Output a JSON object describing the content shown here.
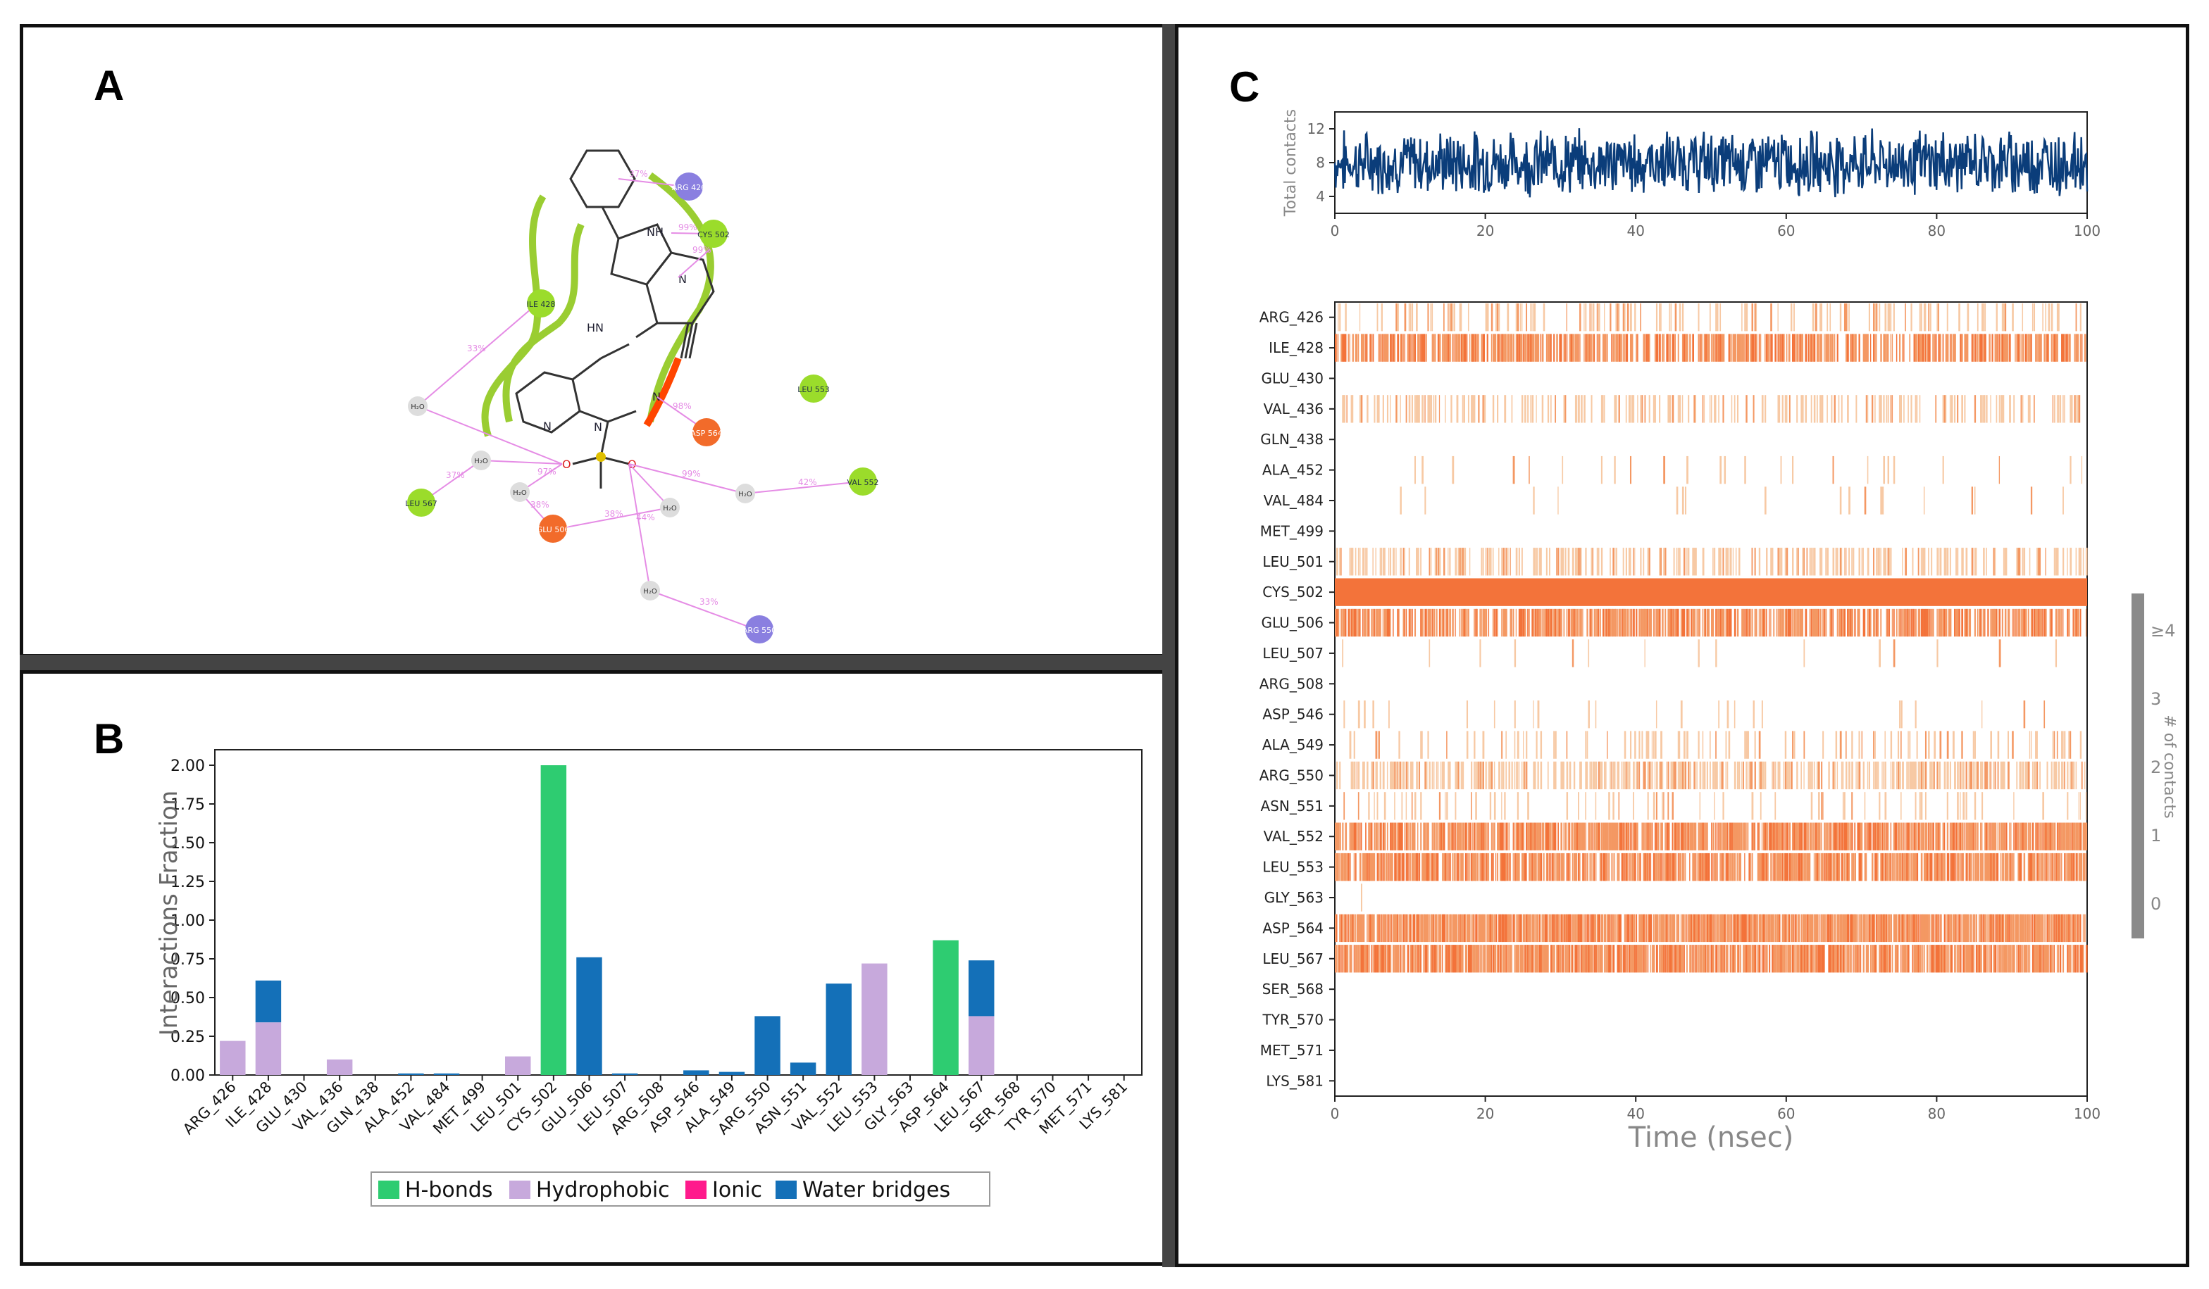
{
  "colors": {
    "hbond": "#2ecc71",
    "hydrophobic": "#c7a9dc",
    "ionic": "#ff1a8c",
    "water": "#1470b8",
    "contacts_line": "#0b3d7a",
    "heat_dark": "#f3733a",
    "heat_mid": "#f49863",
    "heat_light": "#f7c9a4",
    "colorbar": "#8a8a8a"
  },
  "panels": {
    "a": "A",
    "b": "B",
    "c": "C"
  },
  "diagram": {
    "residues": [
      {
        "id": "arg426",
        "label": "ARG 426",
        "kind": "positive"
      },
      {
        "id": "cys502",
        "label": "CYS 502",
        "kind": "hydrophobic"
      },
      {
        "id": "ile428",
        "label": "ILE 428",
        "kind": "hydrophobic"
      },
      {
        "id": "leu553",
        "label": "LEU 553",
        "kind": "hydrophobic"
      },
      {
        "id": "asp564",
        "label": "ASP 564",
        "kind": "negative"
      },
      {
        "id": "val552",
        "label": "VAL 552",
        "kind": "hydrophobic"
      },
      {
        "id": "leu567",
        "label": "LEU 567",
        "kind": "hydrophobic"
      },
      {
        "id": "glu506",
        "label": "GLU 506",
        "kind": "negative"
      },
      {
        "id": "arg550",
        "label": "ARG 550",
        "kind": "positive"
      }
    ],
    "atoms": {
      "nh": "NH",
      "n_ring": "N",
      "hn": "HN",
      "n_nitrile": "N",
      "n_pyr": "N",
      "n_me": "N",
      "o1": "O",
      "o2": "O",
      "s": "S"
    },
    "water_label": "H₂O",
    "pct_labels": [
      "37%",
      "99%",
      "99%",
      "33%",
      "98%",
      "37%",
      "97%",
      "38%",
      "38%",
      "99%",
      "42%",
      "44%",
      "33%"
    ]
  },
  "chart_data": [
    {
      "type": "bar",
      "title": "",
      "ylabel": "Interactions Fraction",
      "xlabel": "",
      "ylim": [
        0,
        2.1
      ],
      "yticks": [
        "0.00",
        "0.25",
        "0.50",
        "0.75",
        "1.00",
        "1.25",
        "1.50",
        "1.75",
        "2.00"
      ],
      "categories": [
        "ARG_426",
        "ILE_428",
        "GLU_430",
        "VAL_436",
        "GLN_438",
        "ALA_452",
        "VAL_484",
        "MET_499",
        "LEU_501",
        "CYS_502",
        "GLU_506",
        "LEU_507",
        "ARG_508",
        "ASP_546",
        "ALA_549",
        "ARG_550",
        "ASN_551",
        "VAL_552",
        "LEU_553",
        "GLY_563",
        "ASP_564",
        "LEU_567",
        "SER_568",
        "TYR_570",
        "MET_571",
        "LYS_581"
      ],
      "series": [
        {
          "name": "H-bonds",
          "values": [
            0,
            0,
            0,
            0,
            0,
            0,
            0,
            0,
            0,
            2.0,
            0,
            0,
            0,
            0,
            0,
            0,
            0,
            0,
            0,
            0,
            0.87,
            0,
            0,
            0,
            0,
            0
          ]
        },
        {
          "name": "Hydrophobic",
          "values": [
            0.22,
            0.34,
            0,
            0.1,
            0,
            0,
            0,
            0,
            0.12,
            0,
            0,
            0,
            0,
            0,
            0,
            0,
            0,
            0,
            0.72,
            0,
            0,
            0.38,
            0,
            0,
            0,
            0
          ]
        },
        {
          "name": "Ionic",
          "values": [
            0,
            0,
            0,
            0,
            0,
            0,
            0,
            0,
            0,
            0,
            0,
            0,
            0,
            0,
            0,
            0,
            0,
            0,
            0,
            0,
            0,
            0,
            0,
            0,
            0,
            0
          ]
        },
        {
          "name": "Water bridges",
          "values": [
            0,
            0.27,
            0,
            0,
            0,
            0.01,
            0.01,
            0,
            0,
            0,
            0.76,
            0.01,
            0,
            0.03,
            0.02,
            0.38,
            0.08,
            0.59,
            0,
            0,
            0,
            0.36,
            0,
            0,
            0,
            0
          ]
        }
      ],
      "legend": [
        "H-bonds",
        "Hydrophobic",
        "Ionic",
        "Water bridges"
      ],
      "legend_position": "bottom"
    },
    {
      "type": "line",
      "ylabel": "Total contacts",
      "xlim": [
        0,
        100
      ],
      "ylim": [
        2,
        14
      ],
      "xticks": [
        "0",
        "20",
        "40",
        "60",
        "80",
        "100"
      ],
      "yticks": [
        "4",
        "8",
        "12"
      ],
      "mean": 8,
      "spread": 3
    },
    {
      "type": "heatmap",
      "xlabel": "Time (nsec)",
      "xlim": [
        0,
        100
      ],
      "xticks": [
        "0",
        "20",
        "40",
        "60",
        "80",
        "100"
      ],
      "rows": [
        "ARG_426",
        "ILE_428",
        "GLU_430",
        "VAL_436",
        "GLN_438",
        "ALA_452",
        "VAL_484",
        "MET_499",
        "LEU_501",
        "CYS_502",
        "GLU_506",
        "LEU_507",
        "ARG_508",
        "ASP_546",
        "ALA_549",
        "ARG_550",
        "ASN_551",
        "VAL_552",
        "LEU_553",
        "GLY_563",
        "ASP_564",
        "LEU_567",
        "SER_568",
        "TYR_570",
        "MET_571",
        "LYS_581"
      ],
      "occupancy": [
        0.25,
        0.75,
        0,
        0.35,
        0,
        0.04,
        0.03,
        0,
        0.45,
        1.0,
        0.8,
        0.05,
        0,
        0.06,
        0.2,
        0.65,
        0.12,
        0.85,
        0.85,
        0.005,
        0.95,
        0.9,
        0,
        0,
        0,
        0
      ],
      "colorbar_label": "# of contacts",
      "colorbar_ticks": [
        "≥4",
        "3",
        "2",
        "1",
        "0"
      ]
    }
  ]
}
